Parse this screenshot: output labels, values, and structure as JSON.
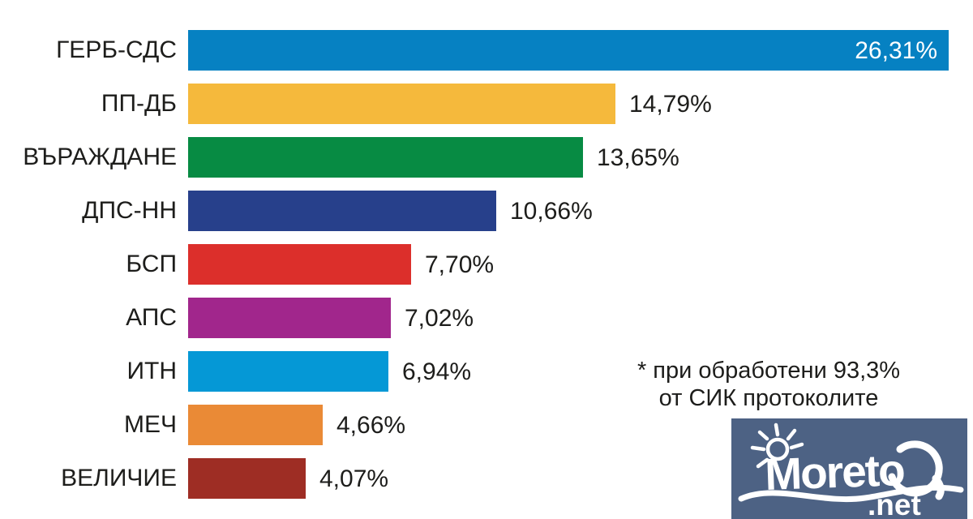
{
  "chart_data": {
    "type": "bar",
    "orientation": "horizontal",
    "title": "",
    "xlabel": "",
    "ylabel": "",
    "grid": false,
    "axes_visible": false,
    "xlim": [
      0,
      27
    ],
    "categories": [
      "ГЕРБ-СДС",
      "ПП-ДБ",
      "ВЪРАЖДАНЕ",
      "ДПС-НН",
      "БСП",
      "АПС",
      "ИТН",
      "МЕЧ",
      "ВЕЛИЧИЕ"
    ],
    "values": [
      26.31,
      14.79,
      13.65,
      10.66,
      7.7,
      7.02,
      6.94,
      4.66,
      4.07
    ],
    "value_labels": [
      "26,31%",
      "14,79%",
      "13,65%",
      "10,66%",
      "7,70%",
      "7,02%",
      "6,94%",
      "4,66%",
      "4,07%"
    ],
    "bar_colors": [
      "#0681c2",
      "#f5b93c",
      "#078b43",
      "#27408b",
      "#dc2f2b",
      "#a1268c",
      "#0598d6",
      "#ea8a36",
      "#9e2d24"
    ],
    "value_label_inside": [
      true,
      false,
      false,
      false,
      false,
      false,
      false,
      false,
      false
    ]
  },
  "annotation": {
    "line1": "* при обработени 93,3%",
    "line2": "от СИК протоколите"
  },
  "logo": {
    "brand": "Moreto",
    "tld": ".net",
    "background": "#4d6284",
    "foreground": "#ffffff"
  },
  "colors": {
    "page_background": "#ffffff",
    "text": "#1d1d1b",
    "value_inside_text": "#ffffff"
  }
}
